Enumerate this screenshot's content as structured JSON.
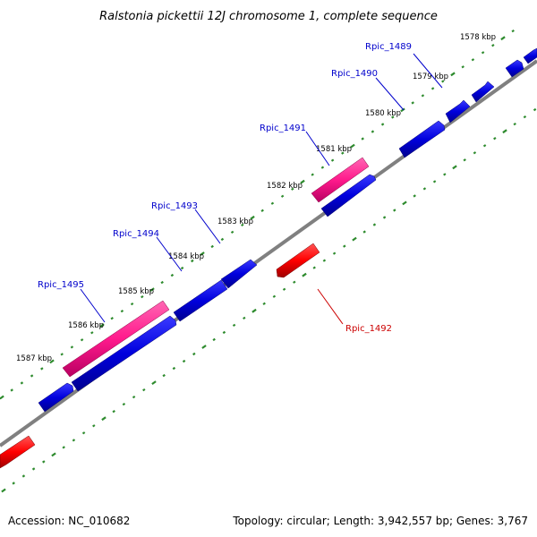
{
  "title": "Ralstonia pickettii 12J chromosome 1, complete sequence",
  "footer": {
    "accession": "Accession: NC_010682",
    "summary": "Topology: circular; Length: 3,942,557 bp; Genes: 3,767"
  },
  "colors": {
    "forward_gene": "#0000dd",
    "forward_gene_highlight": "#ff1a8c",
    "reverse_gene": "#ff0000",
    "tick": "#2e8b2e",
    "backbone": "#808080",
    "forward_label": "#0000cc",
    "reverse_label": "#cc0000"
  },
  "position_labels": [
    "1578 kbp",
    "1579 kbp",
    "1580 kbp",
    "1581 kbp",
    "1582 kbp",
    "1583 kbp",
    "1584 kbp",
    "1585 kbp",
    "1586 kbp",
    "1587 kbp"
  ],
  "gene_labels": [
    "Rpic_1489",
    "Rpic_1490",
    "Rpic_1491",
    "Rpic_1493",
    "Rpic_1494",
    "Rpic_1495",
    "Rpic_1492"
  ]
}
